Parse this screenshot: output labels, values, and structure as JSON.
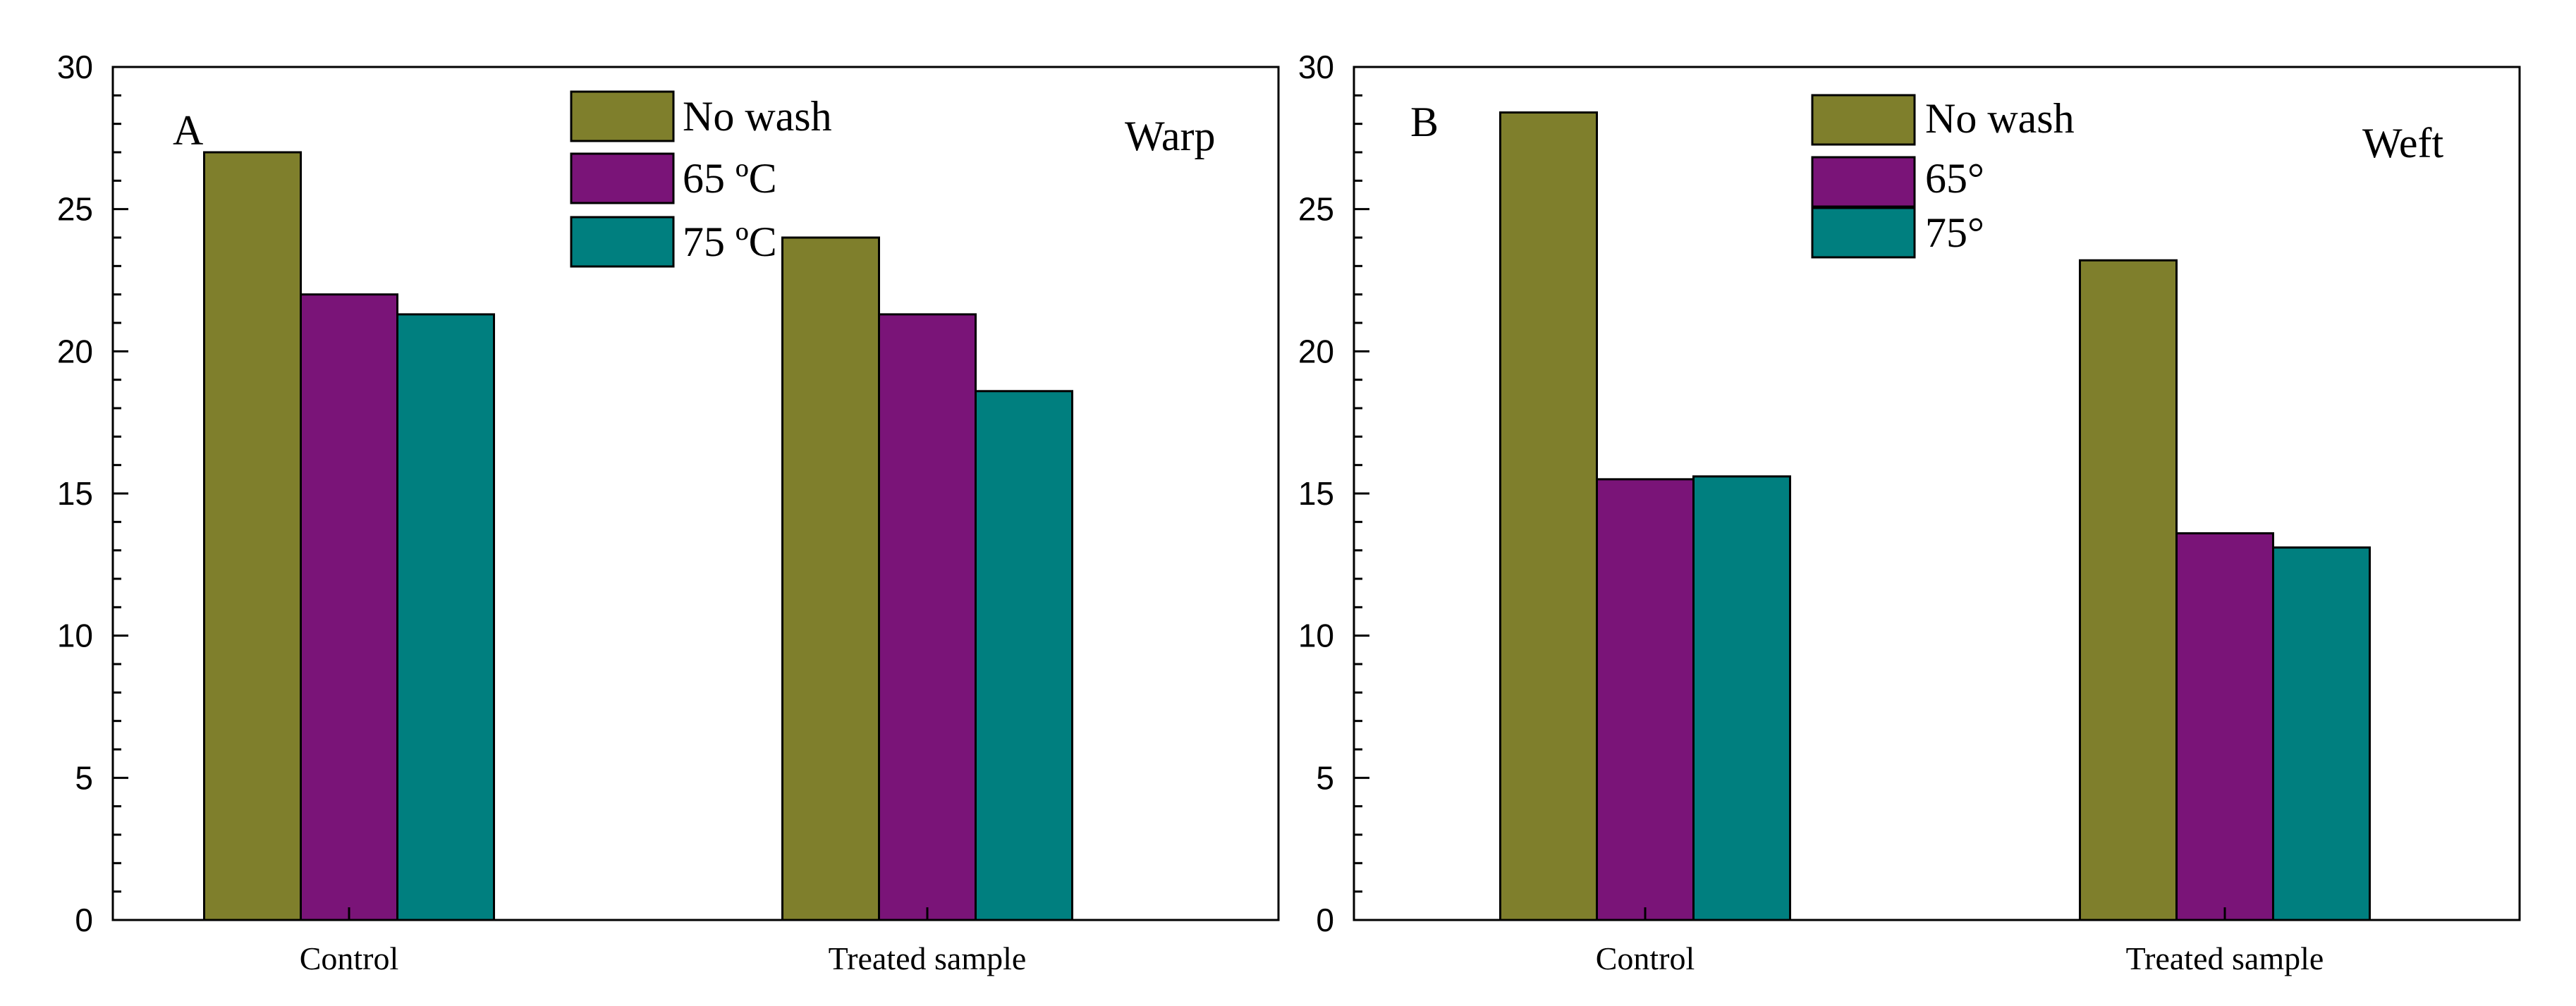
{
  "chart_data": [
    {
      "type": "bar",
      "panel": "A",
      "title": "Warp",
      "categories": [
        "Control",
        "Treated sample"
      ],
      "series": [
        {
          "name": "No wash",
          "values": [
            27.0,
            24.0
          ],
          "color": "#7f7f2c"
        },
        {
          "name": "65 ºC",
          "values": [
            22.0,
            21.3
          ],
          "color": "#7a1478"
        },
        {
          "name": "75 ºC",
          "values": [
            21.3,
            18.6
          ],
          "color": "#007f7f"
        }
      ],
      "ylim": [
        0,
        30
      ],
      "yticks": [
        "0",
        "5",
        "10",
        "15",
        "20",
        "25",
        "30"
      ],
      "xlabel": "",
      "ylabel": "",
      "legend_position": "top-center",
      "grid": false
    },
    {
      "type": "bar",
      "panel": "B",
      "title": "Weft",
      "categories": [
        "Control",
        "Treated sample"
      ],
      "series": [
        {
          "name": "No wash",
          "values": [
            28.4,
            23.2
          ],
          "color": "#7f7f2c"
        },
        {
          "name": "65°",
          "values": [
            15.5,
            13.6
          ],
          "color": "#7a1478"
        },
        {
          "name": "75°",
          "values": [
            15.6,
            13.1
          ],
          "color": "#007f7f"
        }
      ],
      "ylim": [
        0,
        30
      ],
      "yticks": [
        "0",
        "5",
        "10",
        "15",
        "20",
        "25",
        "30"
      ],
      "xlabel": "",
      "ylabel": "",
      "legend_position": "top-center",
      "grid": false
    }
  ]
}
